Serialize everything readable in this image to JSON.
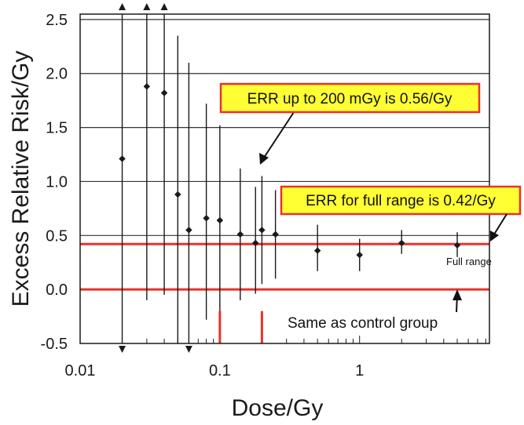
{
  "chart_data": {
    "type": "scatter",
    "xlabel": "Dose/Gy",
    "ylabel": "Excess Relative Risk/Gy",
    "x_scale": "log",
    "xlim": [
      0.01,
      8.5
    ],
    "ylim": [
      -0.5,
      2.55
    ],
    "x_ticks": [
      {
        "value": 0.01,
        "label": "0.01"
      },
      {
        "value": 0.1,
        "label": "0.1"
      },
      {
        "value": 1,
        "label": "1"
      }
    ],
    "y_ticks": [
      {
        "value": 2.5,
        "label": "2.5"
      },
      {
        "value": 2.0,
        "label": "2.0"
      },
      {
        "value": 1.5,
        "label": "1.5"
      },
      {
        "value": 1.0,
        "label": "1.0"
      },
      {
        "value": 0.5,
        "label": "0.5"
      },
      {
        "value": 0.0,
        "label": "0.0"
      },
      {
        "value": -0.5,
        "label": "-0.5"
      }
    ],
    "gridlines_y": [
      0.5,
      1.0,
      1.5,
      2.0,
      2.5
    ],
    "points": [
      {
        "x": 0.02,
        "y": 1.21,
        "lower": -0.5,
        "upper": 2.55,
        "arrow_lower": true,
        "arrow_upper": true
      },
      {
        "x": 0.03,
        "y": 1.88,
        "lower": -0.1,
        "upper": 2.55,
        "arrow_upper": true
      },
      {
        "x": 0.04,
        "y": 1.82,
        "lower": -0.05,
        "upper": 2.55,
        "arrow_upper": true
      },
      {
        "x": 0.05,
        "y": 0.88,
        "lower": -0.5,
        "upper": 2.35
      },
      {
        "x": 0.06,
        "y": 0.55,
        "lower": -0.5,
        "upper": 2.1,
        "arrow_lower": true
      },
      {
        "x": 0.08,
        "y": 0.66,
        "lower": -0.28,
        "upper": 1.72
      },
      {
        "x": 0.1,
        "y": 0.64,
        "lower": -0.2,
        "upper": 1.52
      },
      {
        "x": 0.14,
        "y": 0.51,
        "lower": -0.1,
        "upper": 1.12
      },
      {
        "x": 0.18,
        "y": 0.43,
        "lower": -0.04,
        "upper": 0.95
      },
      {
        "x": 0.2,
        "y": 0.55,
        "lower": 0.05,
        "upper": 1.05
      },
      {
        "x": 0.25,
        "y": 0.51,
        "lower": 0.1,
        "upper": 0.92
      },
      {
        "x": 0.5,
        "y": 0.36,
        "lower": 0.17,
        "upper": 0.6
      },
      {
        "x": 1.0,
        "y": 0.32,
        "lower": 0.17,
        "upper": 0.47
      },
      {
        "x": 2.0,
        "y": 0.43,
        "lower": 0.33,
        "upper": 0.55
      },
      {
        "x": 5.0,
        "y": 0.41,
        "lower": 0.3,
        "upper": 0.53
      }
    ],
    "reference_lines": [
      {
        "y": 0.42,
        "color": "#e8322a"
      },
      {
        "y": 0.0,
        "color": "#e8322a"
      }
    ],
    "vertical_markers": [
      {
        "x": 0.1,
        "y_from": -0.5,
        "y_to": -0.2,
        "color": "#e8322a"
      },
      {
        "x": 0.2,
        "y_from": -0.5,
        "y_to": -0.2,
        "color": "#e8322a"
      }
    ],
    "annotations": {
      "err_200": "ERR up to 200 mGy is 0.56/Gy",
      "err_full": "ERR for full range is 0.42/Gy",
      "full_range": "Full range",
      "control_group": "Same as control group"
    },
    "colors": {
      "callout_fill": "#ffff33",
      "callout_border": "#e8322a",
      "reference": "#e8322a",
      "data": "#1a1a1a",
      "grid": "#333333"
    }
  }
}
